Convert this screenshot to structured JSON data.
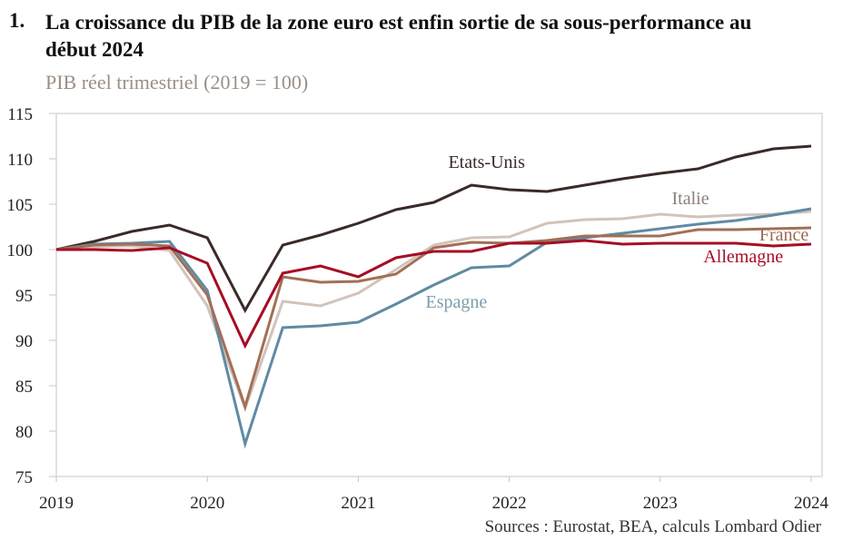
{
  "header": {
    "number": "1.",
    "title": "La croissance du PIB de la zone euro est enfin sortie de sa sous-performance au début 2024",
    "subtitle": "PIB réel trimestriel (2019 = 100)"
  },
  "footer": {
    "source": "Sources : Eurostat, BEA, calculs Lombard Odier"
  },
  "chart_data": {
    "type": "line",
    "title": "La croissance du PIB de la zone euro est enfin sortie de sa sous-performance au début 2024",
    "subtitle": "PIB réel trimestriel (2019 = 100)",
    "xlabel": "",
    "ylabel": "",
    "ylim": [
      75,
      115
    ],
    "yticks": [
      75,
      80,
      85,
      90,
      95,
      100,
      105,
      110,
      115
    ],
    "xticks": [
      "2019",
      "2020",
      "2021",
      "2022",
      "2023",
      "2024"
    ],
    "xlim": [
      2019,
      2024
    ],
    "grid": false,
    "legend": "inline labels",
    "x": [
      2019.0,
      2019.25,
      2019.5,
      2019.75,
      2020.0,
      2020.25,
      2020.5,
      2020.75,
      2021.0,
      2021.25,
      2021.5,
      2021.75,
      2022.0,
      2022.25,
      2022.5,
      2022.75,
      2023.0,
      2023.25,
      2023.5,
      2023.75,
      2024.0
    ],
    "series": [
      {
        "name": "Etats-Unis",
        "color": "#3a2a28",
        "values": [
          100.0,
          100.9,
          102.0,
          102.7,
          101.3,
          93.3,
          100.5,
          101.6,
          102.9,
          104.4,
          105.2,
          107.1,
          106.6,
          106.4,
          107.1,
          107.8,
          108.4,
          108.9,
          110.2,
          111.1,
          111.4
        ]
      },
      {
        "name": "Italie",
        "color": "#d2c3bb",
        "values": [
          100.0,
          100.3,
          100.4,
          99.9,
          93.8,
          82.5,
          94.3,
          93.8,
          95.2,
          97.8,
          100.5,
          101.3,
          101.4,
          102.9,
          103.3,
          103.4,
          103.9,
          103.6,
          103.8,
          103.9,
          104.2
        ]
      },
      {
        "name": "Espagne",
        "color": "#5f8ba3",
        "values": [
          100.0,
          100.6,
          100.7,
          100.9,
          95.5,
          78.6,
          91.4,
          91.6,
          92.0,
          94.0,
          96.1,
          98.0,
          98.2,
          100.8,
          101.3,
          101.8,
          102.3,
          102.8,
          103.2,
          103.8,
          104.5
        ]
      },
      {
        "name": "France",
        "color": "#a26f56",
        "values": [
          100.0,
          100.5,
          100.6,
          100.4,
          95.0,
          82.7,
          97.0,
          96.4,
          96.5,
          97.3,
          100.2,
          100.8,
          100.7,
          101.0,
          101.5,
          101.5,
          101.5,
          102.2,
          102.2,
          102.3,
          102.4
        ]
      },
      {
        "name": "Allemagne",
        "color": "#a60d25",
        "values": [
          100.0,
          100.0,
          99.9,
          100.2,
          98.5,
          89.4,
          97.4,
          98.2,
          97.0,
          99.1,
          99.8,
          99.8,
          100.7,
          100.7,
          101.0,
          100.6,
          100.7,
          100.7,
          100.7,
          100.4,
          100.6
        ]
      }
    ],
    "labels": [
      {
        "series": "Etats-Unis",
        "text": "Etats-Unis",
        "x": 2021.85,
        "y": 109.0
      },
      {
        "series": "Italie",
        "text": "Italie",
        "x": 2023.2,
        "y": 105.0
      },
      {
        "series": "Espagne",
        "text": "Espagne",
        "x": 2021.65,
        "y": 93.6
      },
      {
        "series": "France",
        "text": "France",
        "x": 2023.82,
        "y": 101.0
      },
      {
        "series": "Allemagne",
        "text": "Allemagne",
        "x": 2023.55,
        "y": 98.6
      }
    ]
  }
}
